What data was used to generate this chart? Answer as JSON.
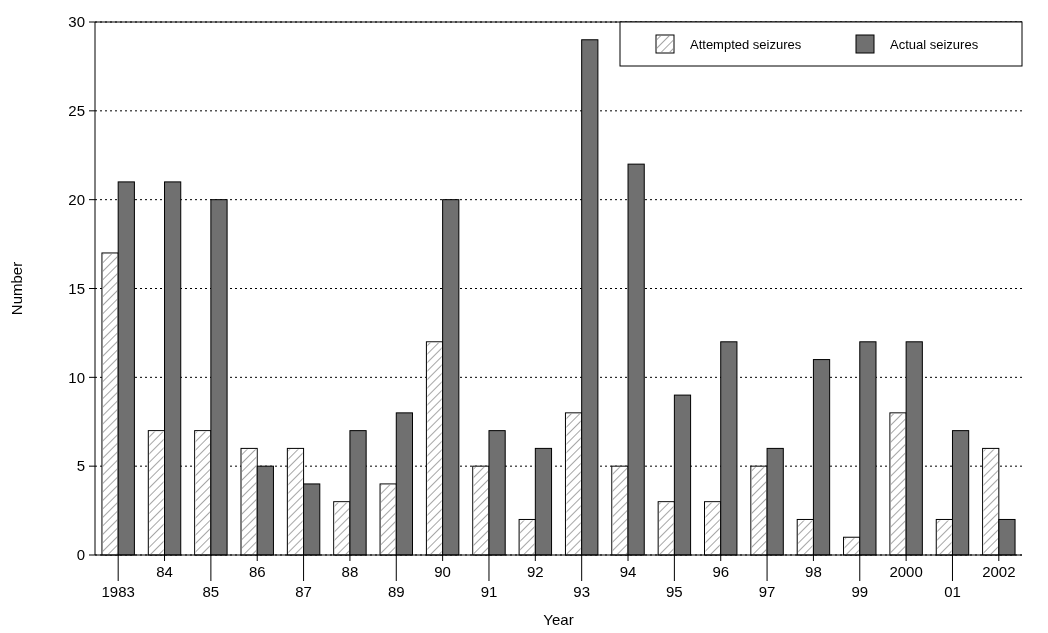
{
  "chart_data": {
    "type": "bar",
    "xlabel": "Year",
    "ylabel": "Number",
    "categories": [
      "1983",
      "84",
      "85",
      "86",
      "87",
      "88",
      "89",
      "90",
      "91",
      "92",
      "93",
      "94",
      "95",
      "96",
      "97",
      "98",
      "99",
      "2000",
      "01",
      "2002"
    ],
    "series": [
      {
        "name": "Attempted seizures",
        "color": "#ffffff",
        "values": [
          17,
          7,
          7,
          6,
          6,
          3,
          4,
          12,
          5,
          2,
          8,
          5,
          3,
          3,
          5,
          2,
          1,
          8,
          2,
          6
        ]
      },
      {
        "name": "Actual seizures",
        "color": "#707070",
        "values": [
          21,
          21,
          20,
          5,
          4,
          7,
          8,
          20,
          7,
          6,
          29,
          22,
          9,
          12,
          6,
          11,
          12,
          12,
          7,
          2
        ]
      }
    ],
    "ylim": [
      0,
      30
    ],
    "yticks": [
      0,
      5,
      10,
      15,
      20,
      25,
      30
    ],
    "grid": "y",
    "legend": "top right"
  }
}
